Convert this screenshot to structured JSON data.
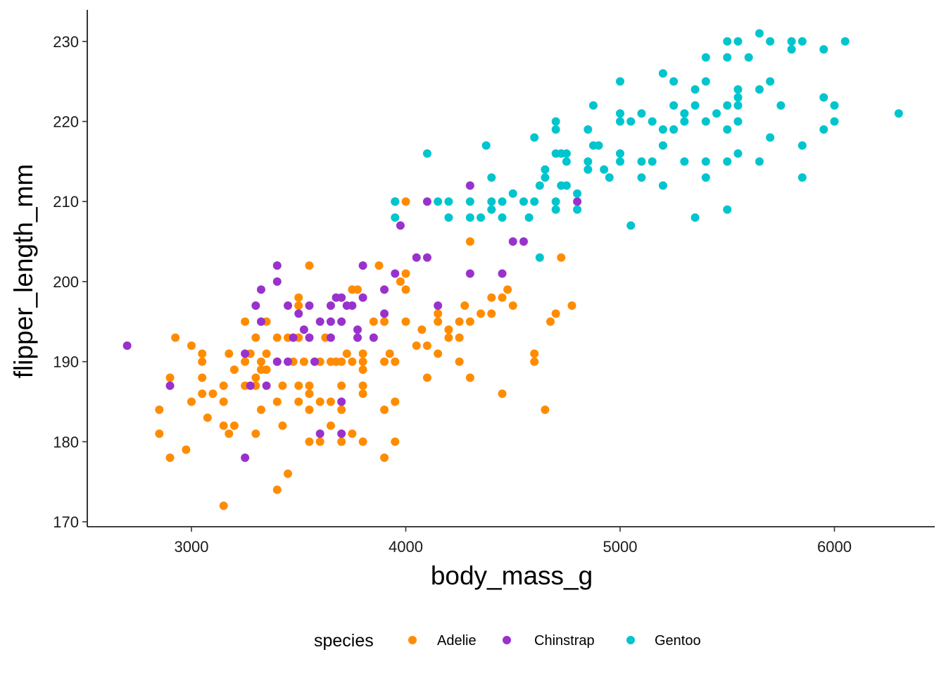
{
  "chart_data": {
    "type": "scatter",
    "title": "",
    "xlabel": "body_mass_g",
    "ylabel": "flipper_length_mm",
    "xlim": [
      2550,
      6500
    ],
    "ylim": [
      169,
      234
    ],
    "xticks": [
      3000,
      4000,
      5000,
      6000
    ],
    "yticks": [
      170,
      180,
      190,
      200,
      210,
      220,
      230
    ],
    "xtick_labels": [
      "3000",
      "4000",
      "5000",
      "6000"
    ],
    "ytick_labels": [
      "170",
      "180",
      "190",
      "200",
      "210",
      "220",
      "230"
    ],
    "grid": false,
    "legend": {
      "title": "species",
      "position": "bottom"
    },
    "series": [
      {
        "name": "Adelie",
        "color": "#ff8c00",
        "points": [
          [
            2850,
            184
          ],
          [
            2850,
            181
          ],
          [
            2900,
            188
          ],
          [
            2900,
            178
          ],
          [
            2925,
            193
          ],
          [
            2975,
            179
          ],
          [
            3000,
            192
          ],
          [
            3000,
            185
          ],
          [
            3050,
            191
          ],
          [
            3050,
            190
          ],
          [
            3050,
            188
          ],
          [
            3050,
            186
          ],
          [
            3075,
            183
          ],
          [
            3100,
            186
          ],
          [
            3150,
            187
          ],
          [
            3150,
            185
          ],
          [
            3150,
            182
          ],
          [
            3150,
            172
          ],
          [
            3175,
            191
          ],
          [
            3175,
            181
          ],
          [
            3200,
            182
          ],
          [
            3200,
            189
          ],
          [
            3250,
            195
          ],
          [
            3250,
            190
          ],
          [
            3250,
            187
          ],
          [
            3275,
            191
          ],
          [
            3300,
            193
          ],
          [
            3300,
            188
          ],
          [
            3300,
            187
          ],
          [
            3300,
            181
          ],
          [
            3325,
            190
          ],
          [
            3325,
            189
          ],
          [
            3325,
            184
          ],
          [
            3350,
            195
          ],
          [
            3350,
            191
          ],
          [
            3350,
            189
          ],
          [
            3400,
            193
          ],
          [
            3400,
            185
          ],
          [
            3400,
            190
          ],
          [
            3400,
            174
          ],
          [
            3425,
            187
          ],
          [
            3425,
            182
          ],
          [
            3450,
            193
          ],
          [
            3450,
            176
          ],
          [
            3475,
            190
          ],
          [
            3500,
            198
          ],
          [
            3500,
            197
          ],
          [
            3500,
            193
          ],
          [
            3500,
            187
          ],
          [
            3500,
            185
          ],
          [
            3525,
            190
          ],
          [
            3550,
            202
          ],
          [
            3550,
            187
          ],
          [
            3550,
            186
          ],
          [
            3550,
            184
          ],
          [
            3550,
            180
          ],
          [
            3575,
            190
          ],
          [
            3600,
            190
          ],
          [
            3600,
            185
          ],
          [
            3600,
            180
          ],
          [
            3625,
            193
          ],
          [
            3650,
            190
          ],
          [
            3650,
            185
          ],
          [
            3650,
            182
          ],
          [
            3675,
            190
          ],
          [
            3700,
            190
          ],
          [
            3700,
            187
          ],
          [
            3700,
            184
          ],
          [
            3700,
            180
          ],
          [
            3725,
            191
          ],
          [
            3750,
            199
          ],
          [
            3750,
            190
          ],
          [
            3750,
            181
          ],
          [
            3775,
            199
          ],
          [
            3800,
            191
          ],
          [
            3800,
            190
          ],
          [
            3800,
            189
          ],
          [
            3800,
            187
          ],
          [
            3800,
            186
          ],
          [
            3800,
            180
          ],
          [
            3850,
            195
          ],
          [
            3875,
            202
          ],
          [
            3900,
            195
          ],
          [
            3900,
            190
          ],
          [
            3900,
            184
          ],
          [
            3900,
            178
          ],
          [
            3925,
            191
          ],
          [
            3950,
            190
          ],
          [
            3950,
            185
          ],
          [
            3950,
            180
          ],
          [
            3975,
            200
          ],
          [
            4000,
            201
          ],
          [
            4000,
            199
          ],
          [
            4000,
            195
          ],
          [
            4000,
            210
          ],
          [
            4050,
            192
          ],
          [
            4075,
            194
          ],
          [
            4100,
            192
          ],
          [
            4100,
            188
          ],
          [
            4150,
            196
          ],
          [
            4150,
            195
          ],
          [
            4150,
            191
          ],
          [
            4200,
            194
          ],
          [
            4200,
            193
          ],
          [
            4250,
            195
          ],
          [
            4250,
            193
          ],
          [
            4250,
            190
          ],
          [
            4275,
            197
          ],
          [
            4300,
            205
          ],
          [
            4300,
            195
          ],
          [
            4300,
            188
          ],
          [
            4350,
            196
          ],
          [
            4400,
            198
          ],
          [
            4400,
            196
          ],
          [
            4450,
            198
          ],
          [
            4450,
            186
          ],
          [
            4475,
            199
          ],
          [
            4500,
            197
          ],
          [
            4600,
            191
          ],
          [
            4600,
            190
          ],
          [
            4650,
            184
          ],
          [
            4675,
            195
          ],
          [
            4700,
            196
          ],
          [
            4725,
            203
          ],
          [
            4775,
            197
          ]
        ]
      },
      {
        "name": "Chinstrap",
        "color": "#9932cc",
        "points": [
          [
            2700,
            192
          ],
          [
            2900,
            187
          ],
          [
            3250,
            178
          ],
          [
            3250,
            191
          ],
          [
            3275,
            187
          ],
          [
            3300,
            197
          ],
          [
            3325,
            195
          ],
          [
            3325,
            199
          ],
          [
            3350,
            187
          ],
          [
            3400,
            202
          ],
          [
            3400,
            200
          ],
          [
            3400,
            190
          ],
          [
            3450,
            197
          ],
          [
            3450,
            190
          ],
          [
            3475,
            193
          ],
          [
            3500,
            196
          ],
          [
            3525,
            194
          ],
          [
            3550,
            197
          ],
          [
            3550,
            193
          ],
          [
            3575,
            190
          ],
          [
            3600,
            195
          ],
          [
            3600,
            181
          ],
          [
            3650,
            197
          ],
          [
            3650,
            195
          ],
          [
            3650,
            193
          ],
          [
            3675,
            198
          ],
          [
            3700,
            198
          ],
          [
            3700,
            195
          ],
          [
            3700,
            185
          ],
          [
            3700,
            181
          ],
          [
            3725,
            197
          ],
          [
            3750,
            197
          ],
          [
            3775,
            194
          ],
          [
            3775,
            193
          ],
          [
            3800,
            202
          ],
          [
            3800,
            198
          ],
          [
            3850,
            193
          ],
          [
            3900,
            199
          ],
          [
            3900,
            196
          ],
          [
            3950,
            210
          ],
          [
            3950,
            201
          ],
          [
            3975,
            207
          ],
          [
            4050,
            203
          ],
          [
            4100,
            203
          ],
          [
            4100,
            210
          ],
          [
            4150,
            197
          ],
          [
            4300,
            201
          ],
          [
            4300,
            212
          ],
          [
            4450,
            201
          ],
          [
            4500,
            205
          ],
          [
            4550,
            205
          ],
          [
            4800,
            210
          ]
        ]
      },
      {
        "name": "Gentoo",
        "color": "#00c5cd",
        "points": [
          [
            3950,
            210
          ],
          [
            3950,
            208
          ],
          [
            4100,
            216
          ],
          [
            4150,
            210
          ],
          [
            4200,
            210
          ],
          [
            4200,
            208
          ],
          [
            4300,
            210
          ],
          [
            4300,
            208
          ],
          [
            4350,
            208
          ],
          [
            4375,
            217
          ],
          [
            4400,
            213
          ],
          [
            4400,
            210
          ],
          [
            4400,
            209
          ],
          [
            4450,
            210
          ],
          [
            4450,
            208
          ],
          [
            4500,
            211
          ],
          [
            4550,
            210
          ],
          [
            4575,
            208
          ],
          [
            4600,
            218
          ],
          [
            4600,
            210
          ],
          [
            4625,
            203
          ],
          [
            4625,
            212
          ],
          [
            4650,
            214
          ],
          [
            4650,
            213
          ],
          [
            4700,
            220
          ],
          [
            4700,
            219
          ],
          [
            4700,
            216
          ],
          [
            4700,
            210
          ],
          [
            4700,
            209
          ],
          [
            4725,
            216
          ],
          [
            4725,
            212
          ],
          [
            4750,
            216
          ],
          [
            4750,
            215
          ],
          [
            4750,
            212
          ],
          [
            4800,
            211
          ],
          [
            4800,
            209
          ],
          [
            4850,
            219
          ],
          [
            4850,
            215
          ],
          [
            4850,
            214
          ],
          [
            4875,
            222
          ],
          [
            4875,
            217
          ],
          [
            4900,
            217
          ],
          [
            4925,
            214
          ],
          [
            4950,
            213
          ],
          [
            5000,
            225
          ],
          [
            5000,
            221
          ],
          [
            5000,
            220
          ],
          [
            5000,
            216
          ],
          [
            5000,
            215
          ],
          [
            5050,
            220
          ],
          [
            5050,
            207
          ],
          [
            5100,
            221
          ],
          [
            5100,
            215
          ],
          [
            5100,
            213
          ],
          [
            5150,
            220
          ],
          [
            5150,
            215
          ],
          [
            5200,
            226
          ],
          [
            5200,
            219
          ],
          [
            5200,
            217
          ],
          [
            5200,
            212
          ],
          [
            5250,
            225
          ],
          [
            5250,
            222
          ],
          [
            5250,
            219
          ],
          [
            5300,
            221
          ],
          [
            5300,
            220
          ],
          [
            5300,
            215
          ],
          [
            5350,
            224
          ],
          [
            5350,
            222
          ],
          [
            5350,
            208
          ],
          [
            5400,
            228
          ],
          [
            5400,
            225
          ],
          [
            5400,
            220
          ],
          [
            5400,
            215
          ],
          [
            5400,
            213
          ],
          [
            5450,
            221
          ],
          [
            5500,
            230
          ],
          [
            5500,
            228
          ],
          [
            5500,
            222
          ],
          [
            5500,
            219
          ],
          [
            5500,
            215
          ],
          [
            5500,
            209
          ],
          [
            5550,
            230
          ],
          [
            5550,
            224
          ],
          [
            5550,
            223
          ],
          [
            5550,
            222
          ],
          [
            5550,
            220
          ],
          [
            5550,
            216
          ],
          [
            5600,
            228
          ],
          [
            5650,
            231
          ],
          [
            5650,
            224
          ],
          [
            5650,
            215
          ],
          [
            5700,
            230
          ],
          [
            5700,
            225
          ],
          [
            5700,
            218
          ],
          [
            5750,
            222
          ],
          [
            5800,
            230
          ],
          [
            5800,
            229
          ],
          [
            5850,
            230
          ],
          [
            5850,
            217
          ],
          [
            5850,
            213
          ],
          [
            5950,
            229
          ],
          [
            5950,
            223
          ],
          [
            5950,
            219
          ],
          [
            6000,
            222
          ],
          [
            6000,
            220
          ],
          [
            6050,
            230
          ],
          [
            6300,
            221
          ]
        ]
      }
    ]
  }
}
